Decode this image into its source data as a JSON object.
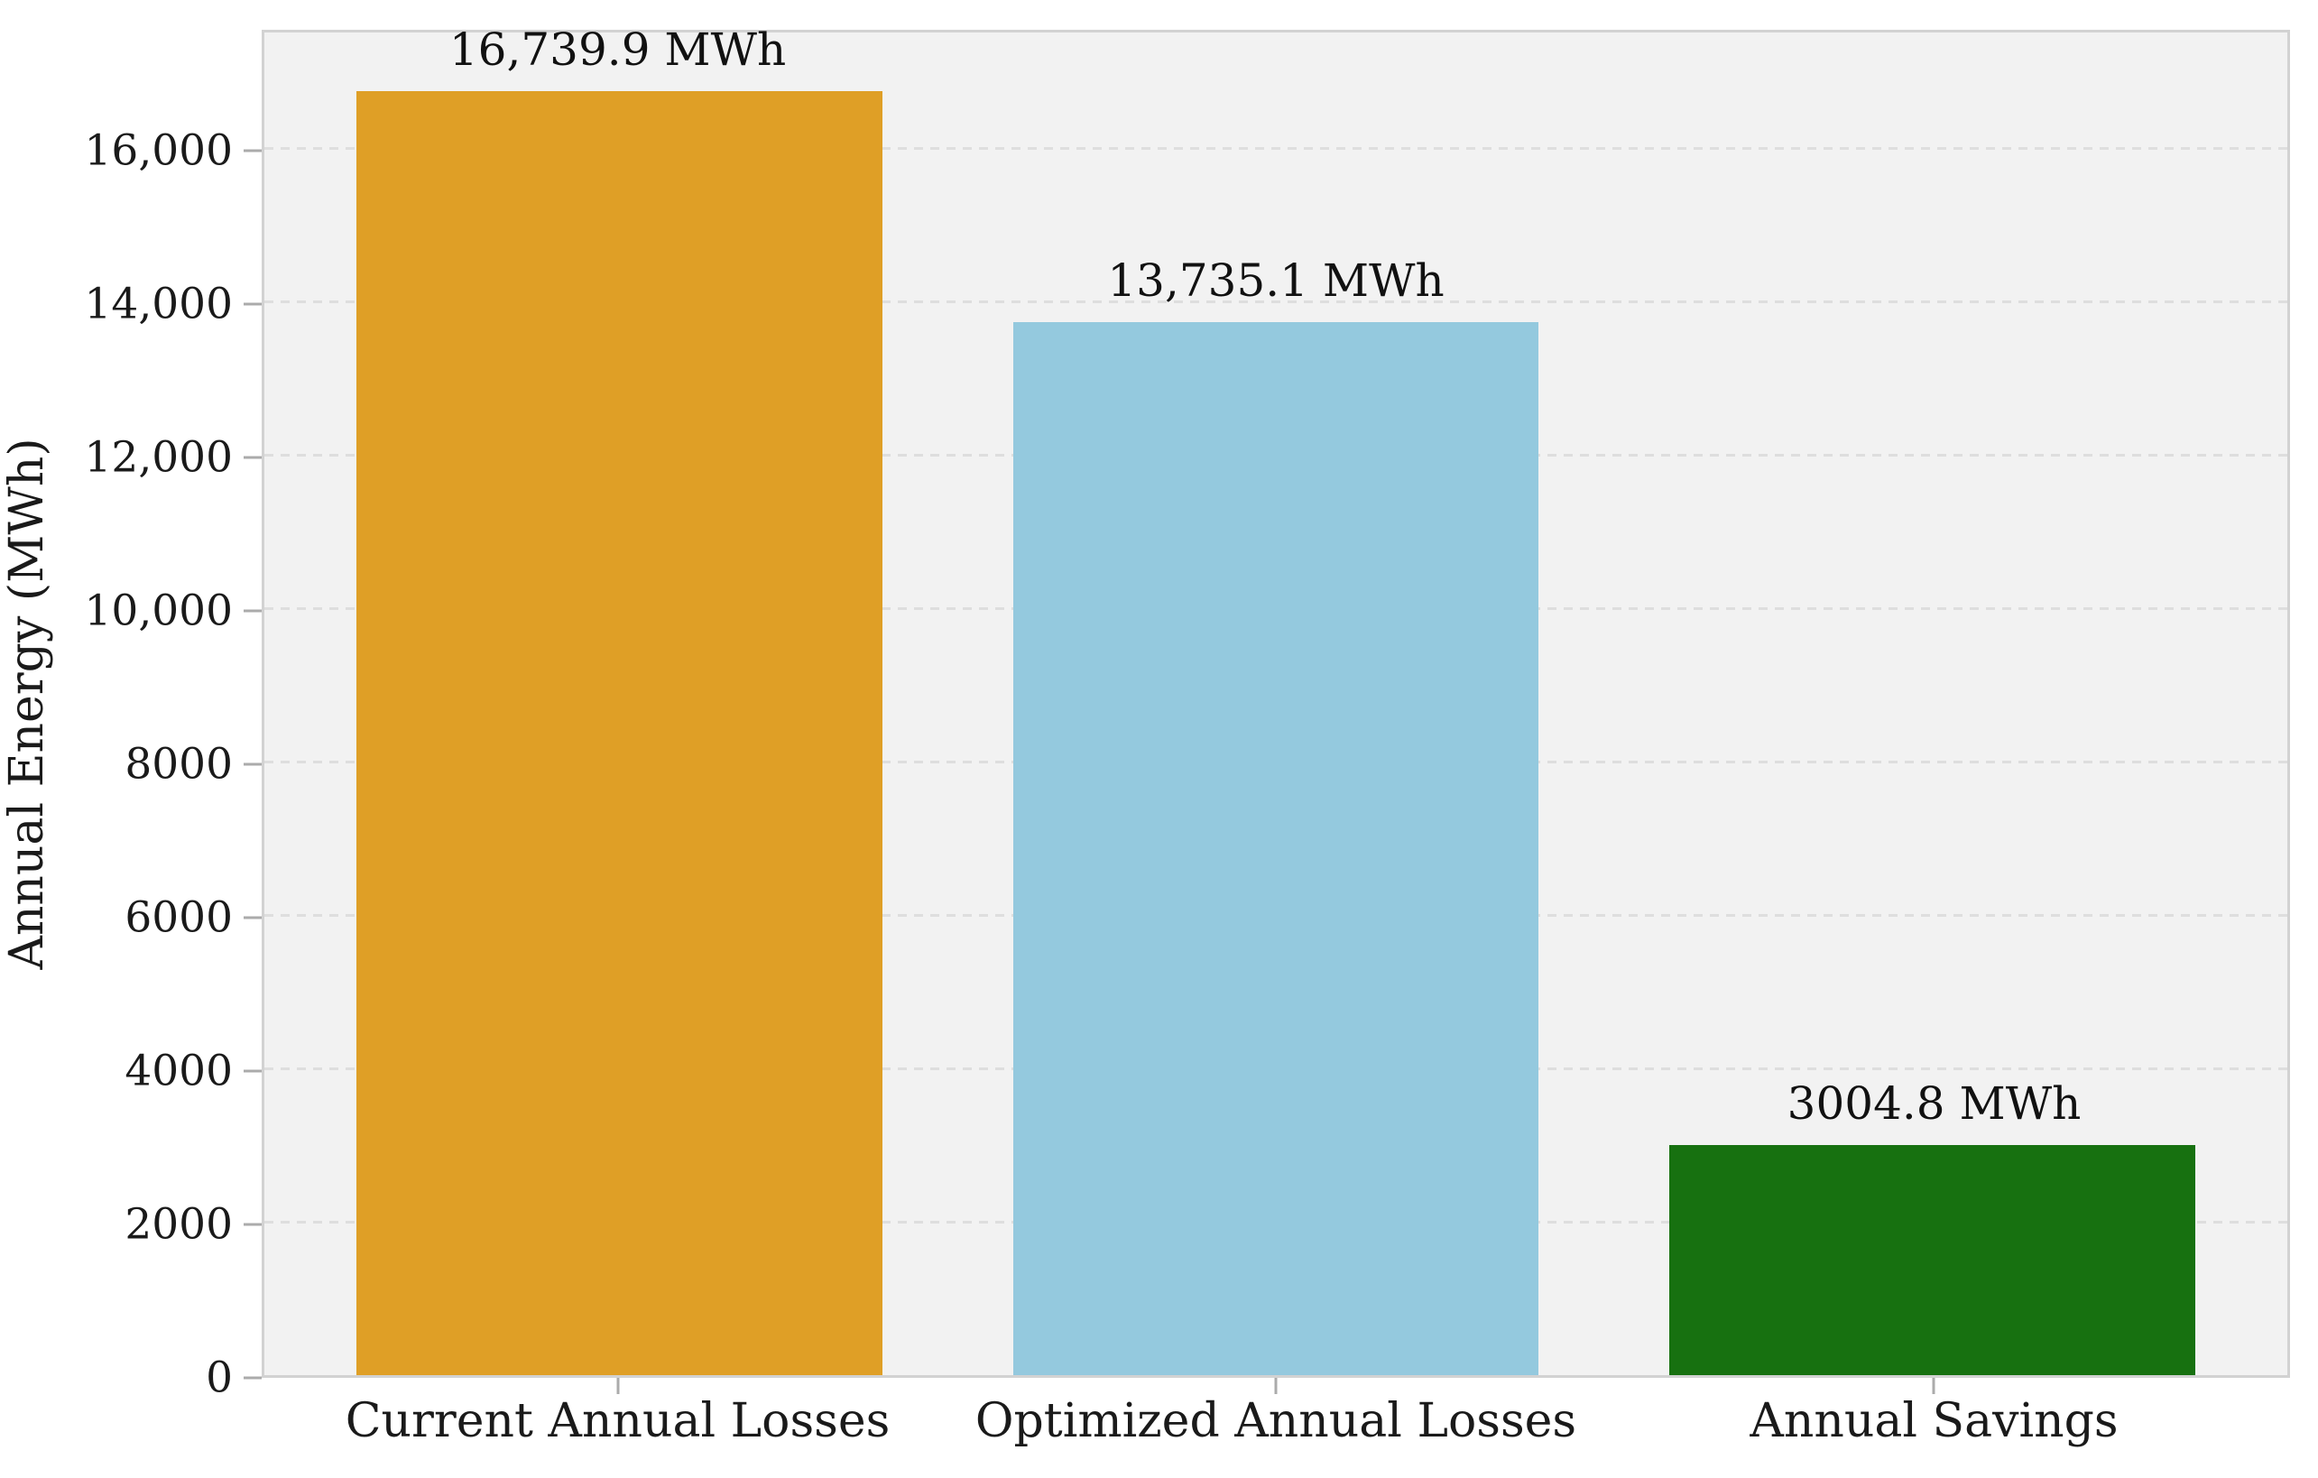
{
  "chart_data": {
    "type": "bar",
    "categories": [
      "Current Annual Losses",
      "Optimized Annual Losses",
      "Annual Savings"
    ],
    "values": [
      16739.9,
      13735.1,
      3004.8
    ],
    "bar_value_labels": [
      "16,739.9 MWh",
      "13,735.1 MWh",
      "3004.8 MWh"
    ],
    "bar_colors": [
      "#df9f26",
      "#94c9de",
      "#177110"
    ],
    "title": "",
    "xlabel": "",
    "ylabel": "Annual Energy (MWh)",
    "ylim": [
      0,
      17577
    ],
    "yticks": [
      {
        "value": 0,
        "label": "0"
      },
      {
        "value": 2000,
        "label": "2000"
      },
      {
        "value": 4000,
        "label": "4000"
      },
      {
        "value": 6000,
        "label": "6000"
      },
      {
        "value": 8000,
        "label": "8000"
      },
      {
        "value": 10000,
        "label": "10,000"
      },
      {
        "value": 12000,
        "label": "12,000"
      },
      {
        "value": 14000,
        "label": "14,000"
      },
      {
        "value": 16000,
        "label": "16,000"
      }
    ],
    "grid": "horizontal-dashed",
    "legend": "none",
    "plot_background": "#f2f2f2",
    "figure_background": "#ffffff"
  }
}
